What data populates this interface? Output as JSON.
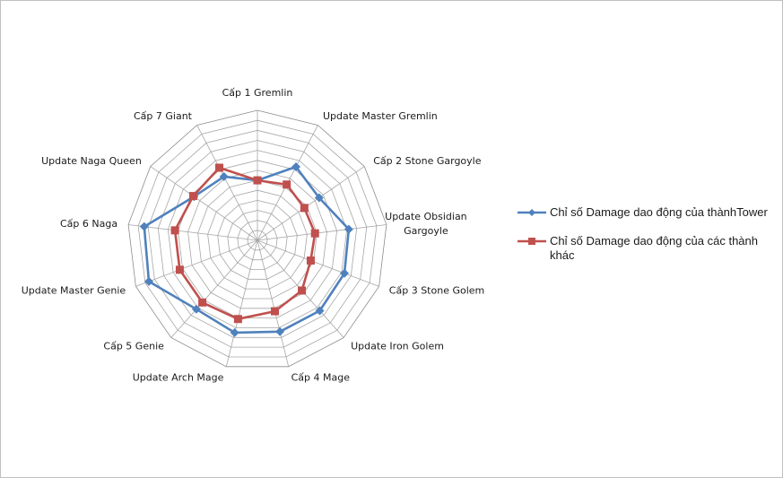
{
  "chart_data": {
    "type": "radar",
    "categories": [
      "Cấp 1 Gremlin",
      "Update Master Gremlin",
      "Cấp 2 Stone  Gargoyle",
      "Update Obsidian Gargoyle",
      "Cấp 3 Stone Golem",
      "Update Iron Golem",
      "Cấp 4 Mage",
      "Update Arch Mage",
      "Cấp 5 Genie",
      "Update Master Genie",
      "Cấp 6 Naga",
      "Update Naga Queen",
      "Cấp 7 Giant"
    ],
    "rlim": [
      0,
      13
    ],
    "rings": 13,
    "grid": true,
    "legend": "right",
    "series": [
      {
        "name": "Chỉ số Damage  dao động của thànhTower",
        "color": "#4f81bd",
        "marker": "diamond",
        "values": [
          6,
          8.3,
          7.5,
          9.2,
          9.3,
          9.4,
          9.4,
          9.5,
          9.2,
          11.6,
          11.4,
          7.7,
          7.2
        ]
      },
      {
        "name": "Chỉ số Damage  dao động của các thành khác",
        "color": "#c0504d",
        "marker": "square",
        "values": [
          6,
          6.3,
          5.7,
          5.8,
          5.7,
          6.7,
          7.3,
          8.1,
          8.3,
          8.3,
          8.3,
          7.8,
          8.2
        ]
      }
    ]
  }
}
